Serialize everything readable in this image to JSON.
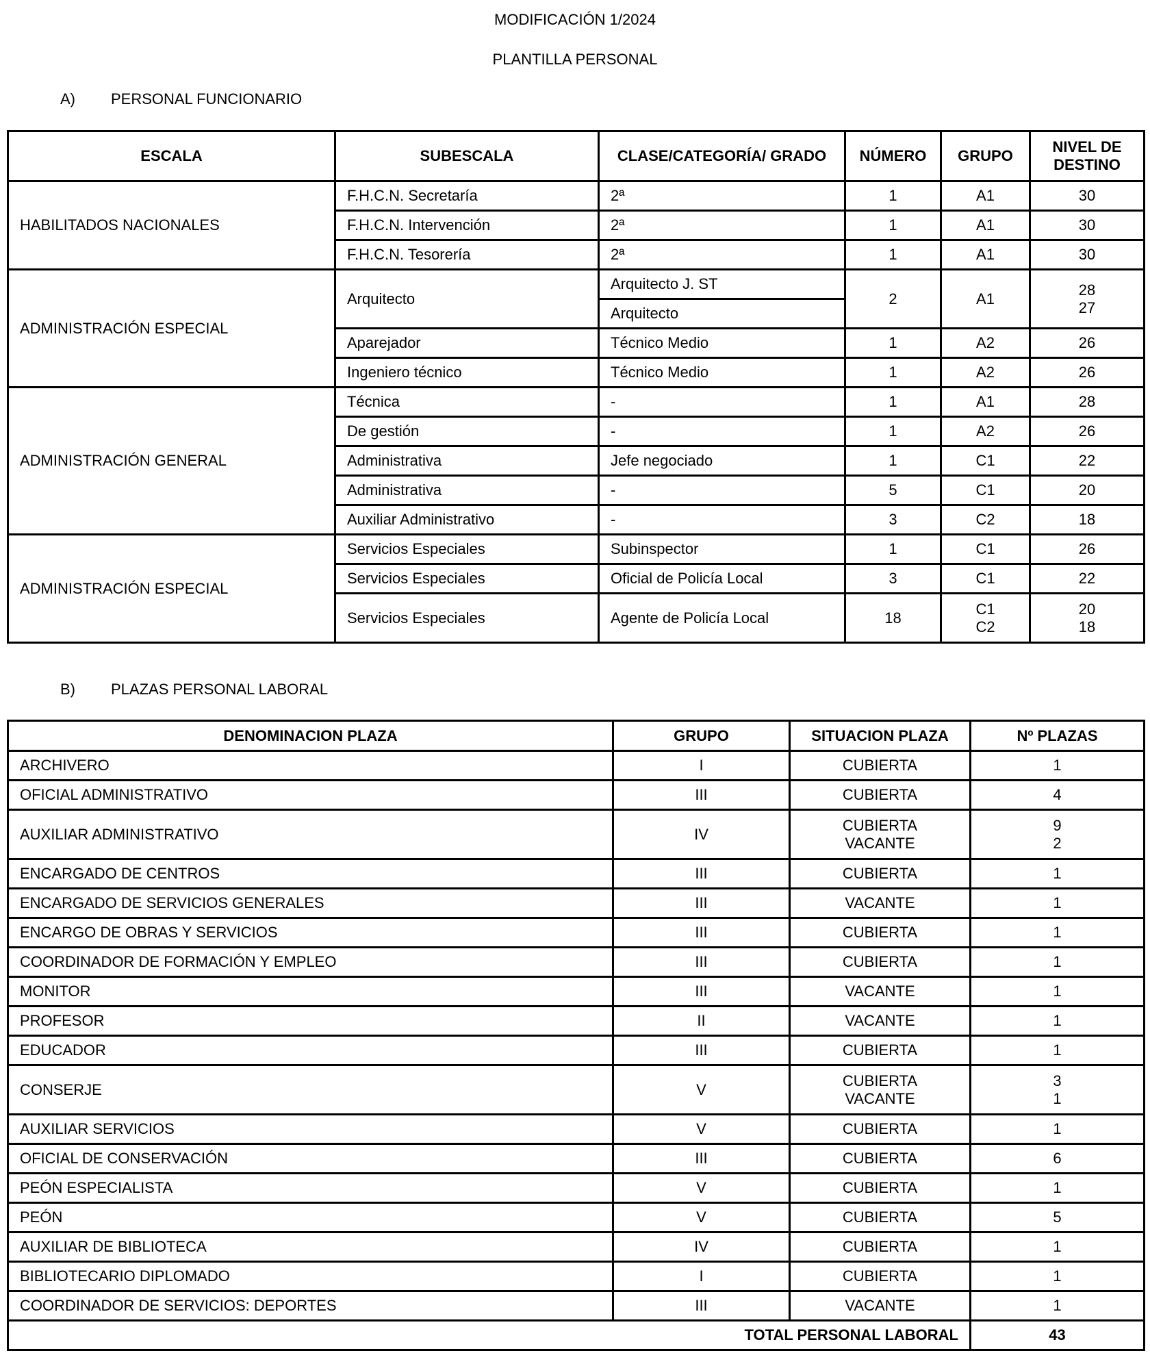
{
  "title": "MODIFICACIÓN 1/2024",
  "subtitle": "PLANTILLA PERSONAL",
  "section_a": {
    "letter": "A)",
    "label": "PERSONAL FUNCIONARIO"
  },
  "section_b": {
    "letter": "B)",
    "label": "PLAZAS PERSONAL LABORAL"
  },
  "funcionario": {
    "headers": [
      "ESCALA",
      "SUBESCALA",
      "CLASE/CATEGORÍA/ GRADO",
      "NÚMERO",
      "GRUPO",
      "NIVEL DE DESTINO"
    ],
    "groups": [
      {
        "escala": "HABILITADOS NACIONALES",
        "rows": [
          {
            "subescala": "F.H.C.N. Secretaría",
            "clase": [
              "2ª"
            ],
            "numero": "1",
            "grupo": [
              "A1"
            ],
            "nivel": [
              "30"
            ]
          },
          {
            "subescala": "F.H.C.N. Intervención",
            "clase": [
              "2ª"
            ],
            "numero": "1",
            "grupo": [
              "A1"
            ],
            "nivel": [
              "30"
            ]
          },
          {
            "subescala": "F.H.C.N. Tesorería",
            "clase": [
              "2ª"
            ],
            "numero": "1",
            "grupo": [
              "A1"
            ],
            "nivel": [
              "30"
            ]
          }
        ]
      },
      {
        "escala": "ADMINISTRACIÓN ESPECIAL",
        "rows": [
          {
            "subescala": "Arquitecto",
            "clase": [
              "Arquitecto J. ST",
              "Arquitecto"
            ],
            "numero": "2",
            "grupo": [
              "A1"
            ],
            "nivel": [
              "28",
              "27"
            ]
          },
          {
            "subescala": "Aparejador",
            "clase": [
              "Técnico Medio"
            ],
            "numero": "1",
            "grupo": [
              "A2"
            ],
            "nivel": [
              "26"
            ]
          },
          {
            "subescala": "Ingeniero técnico",
            "clase": [
              "Técnico Medio"
            ],
            "numero": "1",
            "grupo": [
              "A2"
            ],
            "nivel": [
              "26"
            ]
          }
        ]
      },
      {
        "escala": "ADMINISTRACIÓN GENERAL",
        "rows": [
          {
            "subescala": "Técnica",
            "clase": [
              "-"
            ],
            "numero": "1",
            "grupo": [
              "A1"
            ],
            "nivel": [
              "28"
            ]
          },
          {
            "subescala": "De gestión",
            "clase": [
              "-"
            ],
            "numero": "1",
            "grupo": [
              "A2"
            ],
            "nivel": [
              "26"
            ]
          },
          {
            "subescala": "Administrativa",
            "clase": [
              "Jefe negociado"
            ],
            "numero": "1",
            "grupo": [
              "C1"
            ],
            "nivel": [
              "22"
            ]
          },
          {
            "subescala": "Administrativa",
            "clase": [
              "-"
            ],
            "numero": "5",
            "grupo": [
              "C1"
            ],
            "nivel": [
              "20"
            ]
          },
          {
            "subescala": "Auxiliar Administrativo",
            "clase": [
              "-"
            ],
            "numero": "3",
            "grupo": [
              "C2"
            ],
            "nivel": [
              "18"
            ]
          }
        ]
      },
      {
        "escala": "ADMINISTRACIÓN ESPECIAL",
        "rows": [
          {
            "subescala": "Servicios Especiales",
            "clase": [
              "Subinspector"
            ],
            "numero": "1",
            "grupo": [
              "C1"
            ],
            "nivel": [
              "26"
            ]
          },
          {
            "subescala": "Servicios Especiales",
            "clase": [
              "Oficial de Policía Local"
            ],
            "numero": "3",
            "grupo": [
              "C1"
            ],
            "nivel": [
              "22"
            ]
          },
          {
            "subescala": "Servicios Especiales",
            "clase": [
              "Agente de Policía Local"
            ],
            "numero": "18",
            "grupo": [
              "C1",
              "C2"
            ],
            "nivel": [
              "20",
              "18"
            ]
          }
        ]
      }
    ]
  },
  "laboral": {
    "headers": [
      "DENOMINACION PLAZA",
      "GRUPO",
      "SITUACION PLAZA",
      "Nº PLAZAS"
    ],
    "rows": [
      {
        "plaza": "ARCHIVERO",
        "grupo": "I",
        "situacion": [
          "CUBIERTA"
        ],
        "plazas": [
          "1"
        ]
      },
      {
        "plaza": "OFICIAL ADMINISTRATIVO",
        "grupo": "III",
        "situacion": [
          "CUBIERTA"
        ],
        "plazas": [
          "4"
        ]
      },
      {
        "plaza": "AUXILIAR ADMINISTRATIVO",
        "grupo": "IV",
        "situacion": [
          "CUBIERTA",
          "VACANTE"
        ],
        "plazas": [
          "9",
          "2"
        ]
      },
      {
        "plaza": "ENCARGADO DE CENTROS",
        "grupo": "III",
        "situacion": [
          "CUBIERTA"
        ],
        "plazas": [
          "1"
        ]
      },
      {
        "plaza": "ENCARGADO DE SERVICIOS GENERALES",
        "grupo": "III",
        "situacion": [
          "VACANTE"
        ],
        "plazas": [
          "1"
        ]
      },
      {
        "plaza": "ENCARGO DE OBRAS Y SERVICIOS",
        "grupo": "III",
        "situacion": [
          "CUBIERTA"
        ],
        "plazas": [
          "1"
        ]
      },
      {
        "plaza": "COORDINADOR DE FORMACIÓN Y EMPLEO",
        "grupo": "III",
        "situacion": [
          "CUBIERTA"
        ],
        "plazas": [
          "1"
        ]
      },
      {
        "plaza": "MONITOR",
        "grupo": "III",
        "situacion": [
          "VACANTE"
        ],
        "plazas": [
          "1"
        ]
      },
      {
        "plaza": "PROFESOR",
        "grupo": "II",
        "situacion": [
          "VACANTE"
        ],
        "plazas": [
          "1"
        ]
      },
      {
        "plaza": "EDUCADOR",
        "grupo": "III",
        "situacion": [
          "CUBIERTA"
        ],
        "plazas": [
          "1"
        ]
      },
      {
        "plaza": "CONSERJE",
        "grupo": "V",
        "situacion": [
          "CUBIERTA",
          "VACANTE"
        ],
        "plazas": [
          "3",
          "1"
        ]
      },
      {
        "plaza": "AUXILIAR SERVICIOS",
        "grupo": "V",
        "situacion": [
          "CUBIERTA"
        ],
        "plazas": [
          "1"
        ]
      },
      {
        "plaza": "OFICIAL DE CONSERVACIÓN",
        "grupo": "III",
        "situacion": [
          "CUBIERTA"
        ],
        "plazas": [
          "6"
        ]
      },
      {
        "plaza": "PEÓN ESPECIALISTA",
        "grupo": "V",
        "situacion": [
          "CUBIERTA"
        ],
        "plazas": [
          "1"
        ]
      },
      {
        "plaza": "PEÓN",
        "grupo": "V",
        "situacion": [
          "CUBIERTA"
        ],
        "plazas": [
          "5"
        ]
      },
      {
        "plaza": "AUXILIAR DE BIBLIOTECA",
        "grupo": "IV",
        "situacion": [
          "CUBIERTA"
        ],
        "plazas": [
          "1"
        ]
      },
      {
        "plaza": "BIBLIOTECARIO DIPLOMADO",
        "grupo": "I",
        "situacion": [
          "CUBIERTA"
        ],
        "plazas": [
          "1"
        ]
      },
      {
        "plaza": "COORDINADOR DE SERVICIOS: DEPORTES",
        "grupo": "III",
        "situacion": [
          "VACANTE"
        ],
        "plazas": [
          "1"
        ]
      }
    ],
    "total_label": "TOTAL PERSONAL LABORAL",
    "total_value": "43"
  }
}
